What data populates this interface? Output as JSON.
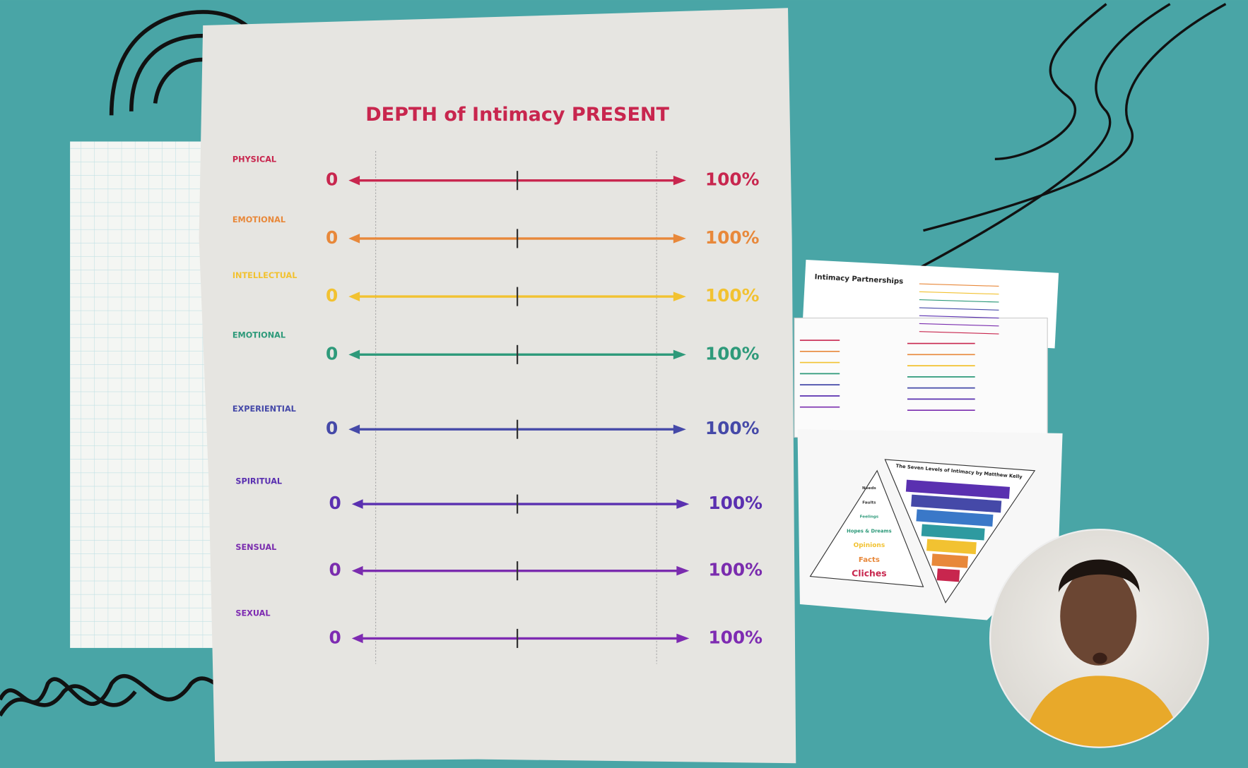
{
  "slide": {
    "title": "DEPTH of Intimacy PRESENT",
    "rows": [
      {
        "label": "PHYSICAL",
        "min": "0",
        "max": "100%",
        "color": "#c8264e"
      },
      {
        "label": "EMOTIONAL",
        "min": "0",
        "max": "100%",
        "color": "#e8883a"
      },
      {
        "label": "INTELLECTUAL",
        "min": "0",
        "max": "100%",
        "color": "#f2c231"
      },
      {
        "label": "EMOTIONAL",
        "min": "0",
        "max": "100%",
        "color": "#2e9a7a"
      },
      {
        "label": "EXPERIENTIAL",
        "min": "0",
        "max": "100%",
        "color": "#4549a8"
      },
      {
        "label": "SPIRITUAL",
        "min": "0",
        "max": "100%",
        "color": "#5a30b0"
      },
      {
        "label": "SENSUAL",
        "min": "0",
        "max": "100%",
        "color": "#7a2cae"
      },
      {
        "label": "SEXUAL",
        "min": "0",
        "max": "100%",
        "color": "#7e2bb2"
      }
    ]
  },
  "thumbnail_1": {
    "title": "Intimacy Partnerships"
  },
  "thumbnail_2": {
    "title": "The Seven Levels of Intimacy by Matthew Kelly",
    "pyramid": [
      "Needs",
      "Faults",
      "Feelings",
      "Hopes & Dreams",
      "Opinions",
      "Facts",
      "Cliches"
    ]
  }
}
